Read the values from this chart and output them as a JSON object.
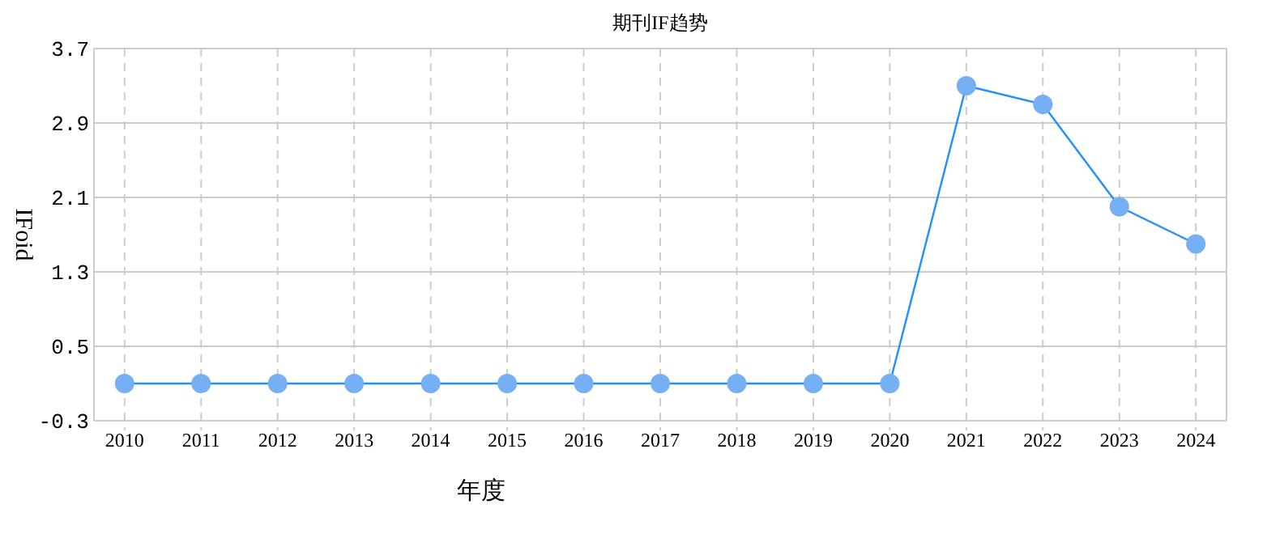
{
  "chart_data": {
    "type": "line",
    "title": "期刊IF趋势",
    "xlabel": "年度",
    "ylabel": "IFoid",
    "categories": [
      "2010",
      "2011",
      "2012",
      "2013",
      "2014",
      "2015",
      "2016",
      "2017",
      "2018",
      "2019",
      "2020",
      "2021",
      "2022",
      "2023",
      "2024"
    ],
    "series": [
      {
        "color": "#1e90ff",
        "values": [
          0.1,
          0.1,
          0.1,
          0.1,
          0.1,
          0.1,
          0.1,
          0.1,
          0.1,
          0.1,
          0.1,
          3.3,
          3.1,
          2.0,
          1.6
        ]
      }
    ],
    "ylim": [
      -0.3,
      3.7
    ],
    "yticks": [
      -0.3,
      0.5,
      1.3,
      2.1,
      2.9,
      3.7
    ],
    "grid": true,
    "marker": "circle",
    "line_style": "solid"
  }
}
